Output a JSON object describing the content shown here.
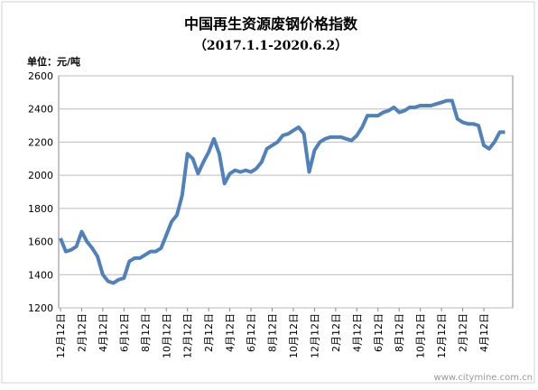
{
  "chart_data": {
    "type": "line",
    "title": "中国再生资源废钢价格指数",
    "subtitle": "（2017.1.1-2020.6.2）",
    "y_label": "单位：元/吨",
    "watermark": "www.citymine.com.cn",
    "categories": [
      "12月12日",
      null,
      null,
      null,
      "2月12日",
      null,
      null,
      null,
      "4月12日",
      null,
      null,
      null,
      "6月12日",
      null,
      null,
      null,
      "8月12日",
      null,
      null,
      null,
      "10月12日",
      null,
      null,
      null,
      "12月12日",
      null,
      null,
      null,
      "2月12日",
      null,
      null,
      null,
      "4月12日",
      null,
      null,
      null,
      "6月12日",
      null,
      null,
      null,
      "8月12日",
      null,
      null,
      null,
      "10月12日",
      null,
      null,
      null,
      "12月12日",
      null,
      null,
      null,
      "2月12日",
      null,
      null,
      null,
      "4月12日",
      null,
      null,
      null,
      "6月12日",
      null,
      null,
      null,
      "8月12日",
      null,
      null,
      null,
      "10月12日",
      null,
      null,
      null,
      "12月12日",
      null,
      null,
      null,
      "2月12日",
      null,
      null,
      null,
      "4月12日",
      null,
      null,
      null,
      null
    ],
    "series": [
      {
        "name": "废钢价格指数",
        "color": "#4f81bd",
        "values": [
          1620,
          1540,
          1550,
          1570,
          1660,
          1600,
          1560,
          1510,
          1400,
          1360,
          1350,
          1370,
          1380,
          1480,
          1500,
          1500,
          1520,
          1540,
          1540,
          1560,
          1640,
          1720,
          1760,
          1880,
          2130,
          2100,
          2010,
          2080,
          2140,
          2220,
          2130,
          1950,
          2010,
          2030,
          2020,
          2030,
          2020,
          2040,
          2080,
          2160,
          2180,
          2200,
          2240,
          2250,
          2270,
          2290,
          2250,
          2020,
          2150,
          2200,
          2220,
          2230,
          2230,
          2230,
          2220,
          2210,
          2240,
          2290,
          2360,
          2360,
          2360,
          2380,
          2390,
          2410,
          2380,
          2390,
          2410,
          2410,
          2420,
          2420,
          2420,
          2430,
          2440,
          2450,
          2450,
          2340,
          2320,
          2310,
          2310,
          2300,
          2180,
          2160,
          2200,
          2260,
          2260
        ]
      }
    ],
    "ylim": [
      1200,
      2600
    ],
    "yticks": [
      1200,
      1400,
      1600,
      1800,
      2000,
      2200,
      2400,
      2600
    ],
    "grid": true
  }
}
